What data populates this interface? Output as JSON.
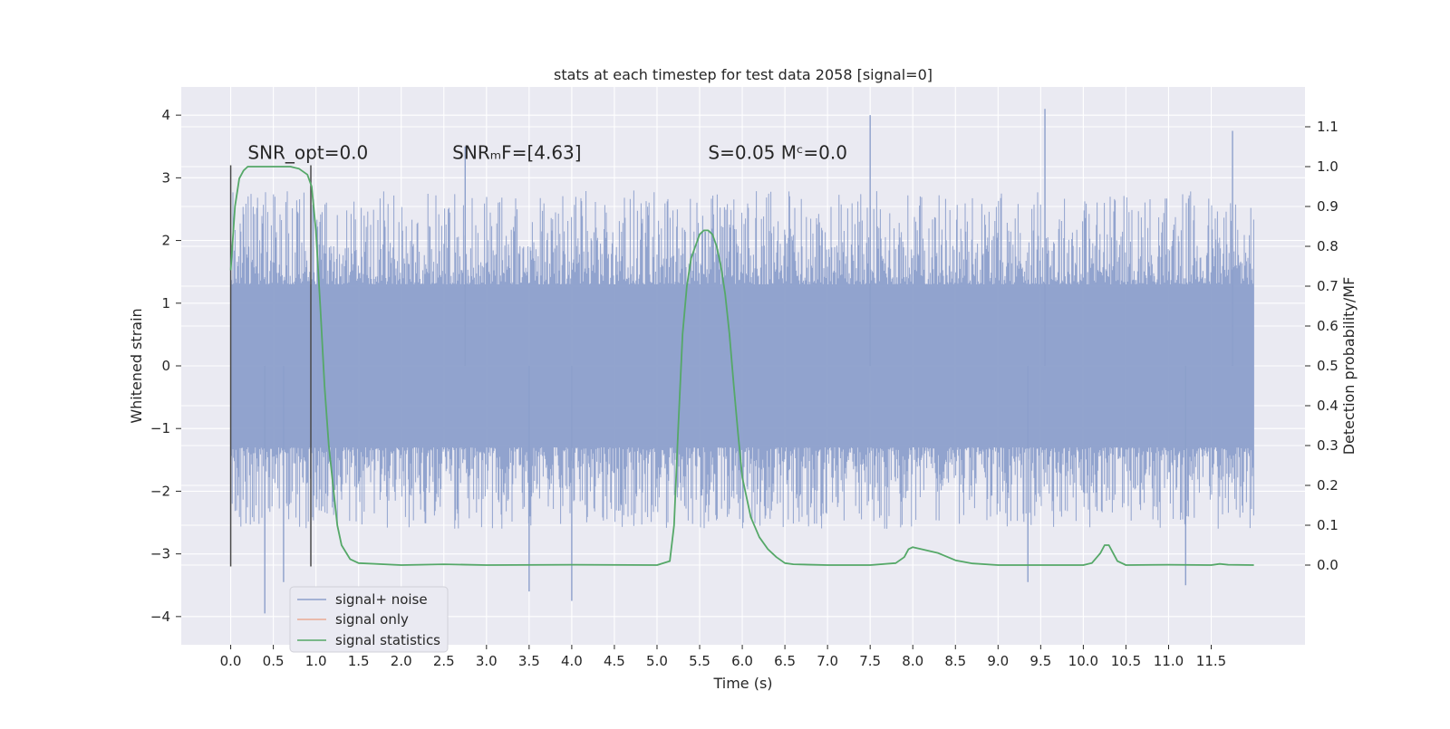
{
  "chart_data": {
    "type": "line",
    "title": "stats at each timestep for test data 2058 [signal=0]",
    "xlabel": "Time (s)",
    "ylabel_left": "Whitened strain",
    "ylabel_right": "Detection probability/MF",
    "xlim": [
      -0.58,
      12.6
    ],
    "ylim_left": [
      -4.45,
      4.45
    ],
    "ylim_right": [
      -0.2,
      1.2
    ],
    "x_ticks": [
      0.0,
      0.5,
      1.0,
      1.5,
      2.0,
      2.5,
      3.0,
      3.5,
      4.0,
      4.5,
      5.0,
      5.5,
      6.0,
      6.5,
      7.0,
      7.5,
      8.0,
      8.5,
      9.0,
      9.5,
      10.0,
      10.5,
      11.0,
      11.5
    ],
    "x_tick_labels": [
      "0.0",
      "0.5",
      "1.0",
      "1.5",
      "2.0",
      "2.5",
      "3.0",
      "3.5",
      "4.0",
      "4.5",
      "5.0",
      "5.5",
      "6.0",
      "6.5",
      "7.0",
      "7.5",
      "8.0",
      "8.5",
      "9.0",
      "9.5",
      "10.0",
      "10.5",
      "11.0",
      "11.5"
    ],
    "y_left_ticks": [
      -4,
      -3,
      -2,
      -1,
      0,
      1,
      2,
      3,
      4
    ],
    "y_left_tick_labels": [
      "−4",
      "−3",
      "−2",
      "−1",
      "0",
      "1",
      "2",
      "3",
      "4"
    ],
    "y_right_ticks": [
      0.0,
      0.1,
      0.2,
      0.3,
      0.4,
      0.5,
      0.6,
      0.7,
      0.8,
      0.9,
      1.0,
      1.1
    ],
    "y_right_tick_labels": [
      "0.0",
      "0.1",
      "0.2",
      "0.3",
      "0.4",
      "0.5",
      "0.6",
      "0.7",
      "0.8",
      "0.9",
      "1.0",
      "1.1"
    ],
    "grid": true,
    "legend_position": "lower-left",
    "annotations": [
      {
        "text": "SNR_opt=0.0",
        "x": 0.2,
        "y": 3.3
      },
      {
        "text": "SNRₘF=[4.63]",
        "x": 2.6,
        "y": 3.3
      },
      {
        "text": "S=0.05   Mᶜ=0.0",
        "x": 5.6,
        "y": 3.3
      }
    ],
    "vertical_lines": [
      {
        "x": 0.0,
        "ymin": -3.2,
        "ymax": 3.2
      },
      {
        "x": 0.94,
        "ymin": -3.2,
        "ymax": 3.2
      }
    ],
    "series": [
      {
        "name": "signal+ noise",
        "axis": "left",
        "color": "#8c9fcb",
        "x_range": [
          0.0,
          12.0
        ],
        "envelope_upper": 1.3,
        "envelope_lower": -1.3,
        "typical_peak_max": 2.8,
        "typical_peak_min": -2.6,
        "extreme_peaks": [
          {
            "x": 0.4,
            "y": -3.95
          },
          {
            "x": 0.62,
            "y": -3.45
          },
          {
            "x": 2.75,
            "y": 3.5
          },
          {
            "x": 3.5,
            "y": -3.6
          },
          {
            "x": 4.0,
            "y": -3.75
          },
          {
            "x": 7.5,
            "y": 4.0
          },
          {
            "x": 9.55,
            "y": 4.1
          },
          {
            "x": 9.35,
            "y": -3.45
          },
          {
            "x": 11.2,
            "y": -3.5
          },
          {
            "x": 11.75,
            "y": 3.75
          }
        ]
      },
      {
        "name": "signal only",
        "axis": "left",
        "color": "#e9a993",
        "values": []
      },
      {
        "name": "signal statistics",
        "axis": "right",
        "color": "#55a868",
        "x": [
          0.0,
          0.05,
          0.1,
          0.15,
          0.2,
          0.3,
          0.5,
          0.7,
          0.8,
          0.9,
          0.95,
          1.0,
          1.05,
          1.1,
          1.15,
          1.2,
          1.25,
          1.3,
          1.4,
          1.5,
          2.0,
          2.5,
          3.0,
          4.0,
          5.0,
          5.15,
          5.2,
          5.25,
          5.3,
          5.35,
          5.4,
          5.45,
          5.5,
          5.55,
          5.6,
          5.65,
          5.7,
          5.75,
          5.8,
          5.85,
          5.9,
          5.95,
          6.0,
          6.1,
          6.2,
          6.3,
          6.4,
          6.5,
          6.6,
          7.0,
          7.5,
          7.8,
          7.9,
          7.95,
          8.0,
          8.1,
          8.3,
          8.5,
          8.7,
          9.0,
          10.0,
          10.1,
          10.2,
          10.25,
          10.3,
          10.35,
          10.4,
          10.5,
          11.0,
          11.5,
          11.6,
          11.7,
          12.0
        ],
        "values": [
          0.74,
          0.9,
          0.97,
          0.99,
          1.0,
          1.0,
          1.0,
          1.0,
          0.995,
          0.98,
          0.95,
          0.84,
          0.65,
          0.45,
          0.3,
          0.2,
          0.1,
          0.05,
          0.015,
          0.005,
          0.0,
          0.002,
          0.0,
          0.001,
          0.0,
          0.01,
          0.1,
          0.35,
          0.58,
          0.7,
          0.77,
          0.8,
          0.83,
          0.84,
          0.84,
          0.83,
          0.8,
          0.75,
          0.68,
          0.58,
          0.45,
          0.33,
          0.22,
          0.12,
          0.07,
          0.04,
          0.02,
          0.005,
          0.002,
          0.0,
          0.0,
          0.005,
          0.02,
          0.04,
          0.045,
          0.04,
          0.03,
          0.012,
          0.004,
          0.0,
          0.0,
          0.005,
          0.03,
          0.05,
          0.05,
          0.03,
          0.01,
          0.0,
          0.001,
          0.0,
          0.003,
          0.001,
          0.0
        ]
      }
    ]
  }
}
